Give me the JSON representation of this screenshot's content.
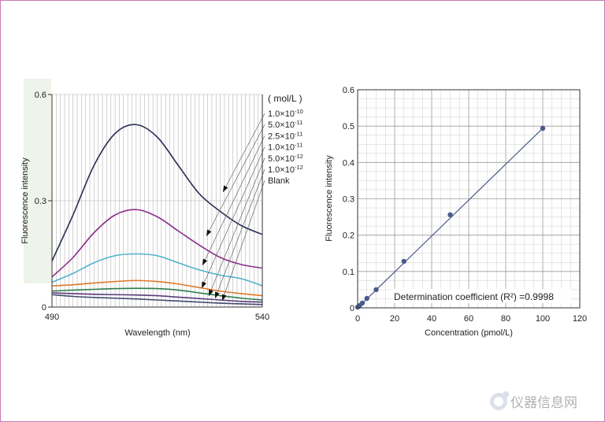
{
  "colors": {
    "frame": "#c77bb5",
    "grid": "#b5b5b5",
    "calib": "#4a5a8a"
  },
  "watermark": {
    "text": "仪器信息网",
    "icon": "logo-mark-icon"
  },
  "chart_data": [
    {
      "type": "line",
      "xlabel": "Wavelength (nm)",
      "ylabel": "Fluorescence intensity",
      "xlim": [
        490,
        540
      ],
      "ylim": [
        0,
        0.6
      ],
      "xticks": [
        "490",
        "540"
      ],
      "yticks": [
        "0",
        "0.3",
        "0.6"
      ],
      "legend_title": "( mol/L )",
      "legend_items": [
        {
          "base": "1.0×10",
          "exp": "-10"
        },
        {
          "base": "5.0×10",
          "exp": "-11"
        },
        {
          "base": "2.5×10",
          "exp": "-11"
        },
        {
          "base": "1.0×10",
          "exp": "-11"
        },
        {
          "base": "5.0×10",
          "exp": "-12"
        },
        {
          "base": "1.0×10",
          "exp": "-12"
        },
        {
          "base": "Blank",
          "exp": ""
        }
      ],
      "x": [
        490,
        495,
        500,
        505,
        510,
        515,
        520,
        525,
        530,
        535,
        540
      ],
      "series": [
        {
          "color": "#2b2f55",
          "values": [
            0.13,
            0.26,
            0.4,
            0.49,
            0.515,
            0.48,
            0.4,
            0.32,
            0.27,
            0.23,
            0.205
          ]
        },
        {
          "color": "#8b2e8b",
          "values": [
            0.085,
            0.14,
            0.21,
            0.26,
            0.275,
            0.255,
            0.215,
            0.175,
            0.14,
            0.12,
            0.11
          ]
        },
        {
          "color": "#4fb3cf",
          "values": [
            0.07,
            0.095,
            0.125,
            0.145,
            0.15,
            0.145,
            0.125,
            0.105,
            0.09,
            0.08,
            0.06
          ]
        },
        {
          "color": "#e07a2a",
          "values": [
            0.06,
            0.063,
            0.068,
            0.072,
            0.075,
            0.072,
            0.065,
            0.055,
            0.045,
            0.038,
            0.032
          ]
        },
        {
          "color": "#2e7d4e",
          "values": [
            0.045,
            0.048,
            0.05,
            0.052,
            0.053,
            0.052,
            0.048,
            0.04,
            0.032,
            0.025,
            0.02
          ]
        },
        {
          "color": "#5a3a7a",
          "values": [
            0.04,
            0.038,
            0.036,
            0.035,
            0.034,
            0.032,
            0.028,
            0.024,
            0.02,
            0.016,
            0.014
          ]
        },
        {
          "color": "#444a70",
          "values": [
            0.035,
            0.03,
            0.027,
            0.025,
            0.023,
            0.02,
            0.017,
            0.014,
            0.011,
            0.009,
            0.007
          ]
        }
      ]
    },
    {
      "type": "scatter",
      "xlabel": "Concentration (pmol/L)",
      "ylabel": "Fluorescence intensity",
      "xlim": [
        0,
        120
      ],
      "ylim": [
        0,
        0.6
      ],
      "xticks": [
        "0",
        "20",
        "40",
        "60",
        "80",
        "100",
        "120"
      ],
      "yticks": [
        "0",
        "0.1",
        "0.2",
        "0.3",
        "0.4",
        "0.5",
        "0.6"
      ],
      "annotation": "Determination coefficient (R²) =0.9998",
      "points": [
        {
          "x": 0,
          "y": 0.002
        },
        {
          "x": 1,
          "y": 0.006
        },
        {
          "x": 2.5,
          "y": 0.013
        },
        {
          "x": 5,
          "y": 0.026
        },
        {
          "x": 10,
          "y": 0.05
        },
        {
          "x": 25,
          "y": 0.128
        },
        {
          "x": 50,
          "y": 0.256
        },
        {
          "x": 100,
          "y": 0.494
        }
      ],
      "fit": {
        "x": [
          0,
          100
        ],
        "y": [
          0.0,
          0.494
        ]
      }
    }
  ]
}
